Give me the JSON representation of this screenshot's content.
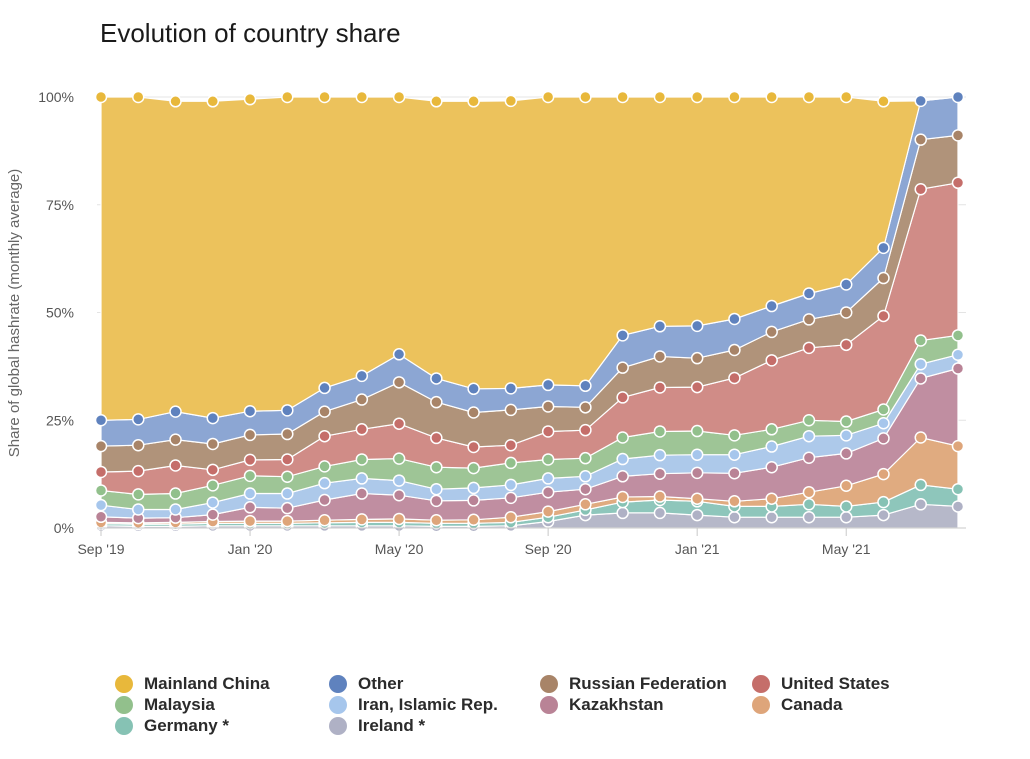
{
  "chart_data": {
    "type": "area",
    "stacked": true,
    "title": "Evolution of country share",
    "ylabel": "Share of global hashrate (monthly average)",
    "ylim": [
      0,
      100
    ],
    "yticks": [
      "0%",
      "25%",
      "50%",
      "75%",
      "100%"
    ],
    "xticks": [
      {
        "label": "Sep '19",
        "index": 0
      },
      {
        "label": "Jan '20",
        "index": 4
      },
      {
        "label": "May '20",
        "index": 8
      },
      {
        "label": "Sep '20",
        "index": 12
      },
      {
        "label": "Jan '21",
        "index": 16
      },
      {
        "label": "May '21",
        "index": 20
      }
    ],
    "x": [
      "Sep 2019",
      "Oct 2019",
      "Nov 2019",
      "Dec 2019",
      "Jan 2020",
      "Feb 2020",
      "Mar 2020",
      "Apr 2020",
      "May 2020",
      "Jun 2020",
      "Jul 2020",
      "Aug 2020",
      "Sep 2020",
      "Oct 2020",
      "Nov 2020",
      "Dec 2020",
      "Jan 2021",
      "Feb 2021",
      "Mar 2021",
      "Apr 2021",
      "May 2021",
      "Jun 2021",
      "Jul 2021",
      "Aug 2021"
    ],
    "series": [
      {
        "name": "Ireland *",
        "color": "#b6b8c9",
        "values": [
          0.5,
          0.4,
          0.4,
          0.5,
          0.5,
          0.5,
          0.5,
          0.5,
          0.5,
          0.4,
          0.4,
          0.5,
          1.5,
          3.0,
          3.5,
          3.5,
          3.0,
          2.5,
          2.5,
          2.5,
          2.5,
          3.0,
          5.5,
          5.0
        ]
      },
      {
        "name": "Germany *",
        "color": "#8ec6bb",
        "values": [
          0.5,
          0.5,
          0.5,
          0.6,
          0.6,
          0.6,
          0.7,
          0.8,
          0.8,
          0.7,
          0.7,
          0.8,
          1.0,
          1.2,
          2.5,
          3.0,
          3.2,
          2.5,
          2.5,
          3.0,
          2.5,
          3.0,
          4.5,
          4.0
        ]
      },
      {
        "name": "Canada",
        "color": "#e0ab80",
        "values": [
          0.3,
          0.3,
          0.4,
          0.4,
          0.5,
          0.5,
          0.6,
          0.7,
          0.8,
          0.7,
          0.8,
          1.2,
          1.3,
          1.3,
          1.2,
          0.8,
          0.6,
          1.2,
          1.8,
          2.8,
          4.8,
          6.5,
          11.0,
          10.0
        ]
      },
      {
        "name": "Kazakhstan",
        "color": "#c08ea1",
        "values": [
          1.3,
          1.1,
          1.1,
          1.6,
          3.2,
          3.0,
          4.7,
          6.0,
          5.5,
          4.5,
          4.5,
          4.5,
          4.5,
          3.5,
          4.8,
          5.3,
          6.0,
          6.5,
          7.3,
          8.0,
          7.5,
          8.3,
          13.7,
          18.0
        ]
      },
      {
        "name": "Iran, Islamic Rep.",
        "color": "#adc9ea",
        "values": [
          2.7,
          2.0,
          1.9,
          2.8,
          3.2,
          3.4,
          3.9,
          3.5,
          3.4,
          2.7,
          2.9,
          3.0,
          3.2,
          3.0,
          4.0,
          4.3,
          4.2,
          4.3,
          4.8,
          5.0,
          4.2,
          3.5,
          3.3,
          3.2
        ]
      },
      {
        "name": "Malaysia",
        "color": "#9ec596",
        "values": [
          3.4,
          3.5,
          3.7,
          4.0,
          4.1,
          3.9,
          3.9,
          4.4,
          5.1,
          5.1,
          4.6,
          5.1,
          4.4,
          4.2,
          5.0,
          5.5,
          5.5,
          4.5,
          4.0,
          3.7,
          3.2,
          3.2,
          5.5,
          4.5
        ]
      },
      {
        "name": "United States",
        "color": "#d08c87",
        "values": [
          4.3,
          5.4,
          6.5,
          3.6,
          3.7,
          4.0,
          7.0,
          7.0,
          8.1,
          6.8,
          4.9,
          4.1,
          6.5,
          6.5,
          9.3,
          10.2,
          10.2,
          13.3,
          16.0,
          16.8,
          17.8,
          21.7,
          35.1,
          35.4
        ]
      },
      {
        "name": "Russian Federation",
        "color": "#b0937a",
        "values": [
          6.0,
          6.0,
          6.0,
          6.0,
          5.8,
          5.9,
          5.7,
          6.9,
          9.6,
          8.3,
          8.0,
          8.2,
          5.8,
          5.3,
          6.9,
          7.2,
          6.7,
          6.5,
          6.6,
          6.6,
          7.5,
          8.8,
          11.5,
          11.0
        ]
      },
      {
        "name": "Other",
        "color": "#8ca6d3",
        "values": [
          6.0,
          6.0,
          6.5,
          6.0,
          5.5,
          5.5,
          5.5,
          5.5,
          6.5,
          5.5,
          5.5,
          5.0,
          5.0,
          5.0,
          7.5,
          7.0,
          7.5,
          7.2,
          6.0,
          6.0,
          6.5,
          7.0,
          9.0,
          9.0
        ]
      },
      {
        "name": "Mainland China",
        "color": "#ecc25c",
        "values": [
          75.0,
          74.8,
          72.0,
          73.5,
          72.4,
          72.7,
          67.5,
          64.7,
          59.7,
          64.3,
          66.7,
          66.7,
          66.8,
          67.0,
          55.3,
          53.2,
          53.1,
          51.5,
          48.5,
          45.6,
          44.5,
          34.0,
          0,
          0
        ]
      }
    ],
    "legend": {
      "placement": "bottom",
      "items": [
        {
          "name": "Mainland China",
          "color": "#e8b83b"
        },
        {
          "name": "Other",
          "color": "#5f82be"
        },
        {
          "name": "Russian Federation",
          "color": "#a88468"
        },
        {
          "name": "United States",
          "color": "#c56e6a"
        },
        {
          "name": "Malaysia",
          "color": "#92c08c"
        },
        {
          "name": "Iran, Islamic Rep.",
          "color": "#a6c6ec"
        },
        {
          "name": "Kazakhstan",
          "color": "#b98396"
        },
        {
          "name": "Canada",
          "color": "#dea57a"
        },
        {
          "name": "Germany *",
          "color": "#86c2b4"
        },
        {
          "name": "Ireland *",
          "color": "#afb1c5"
        }
      ]
    },
    "grid": true
  }
}
